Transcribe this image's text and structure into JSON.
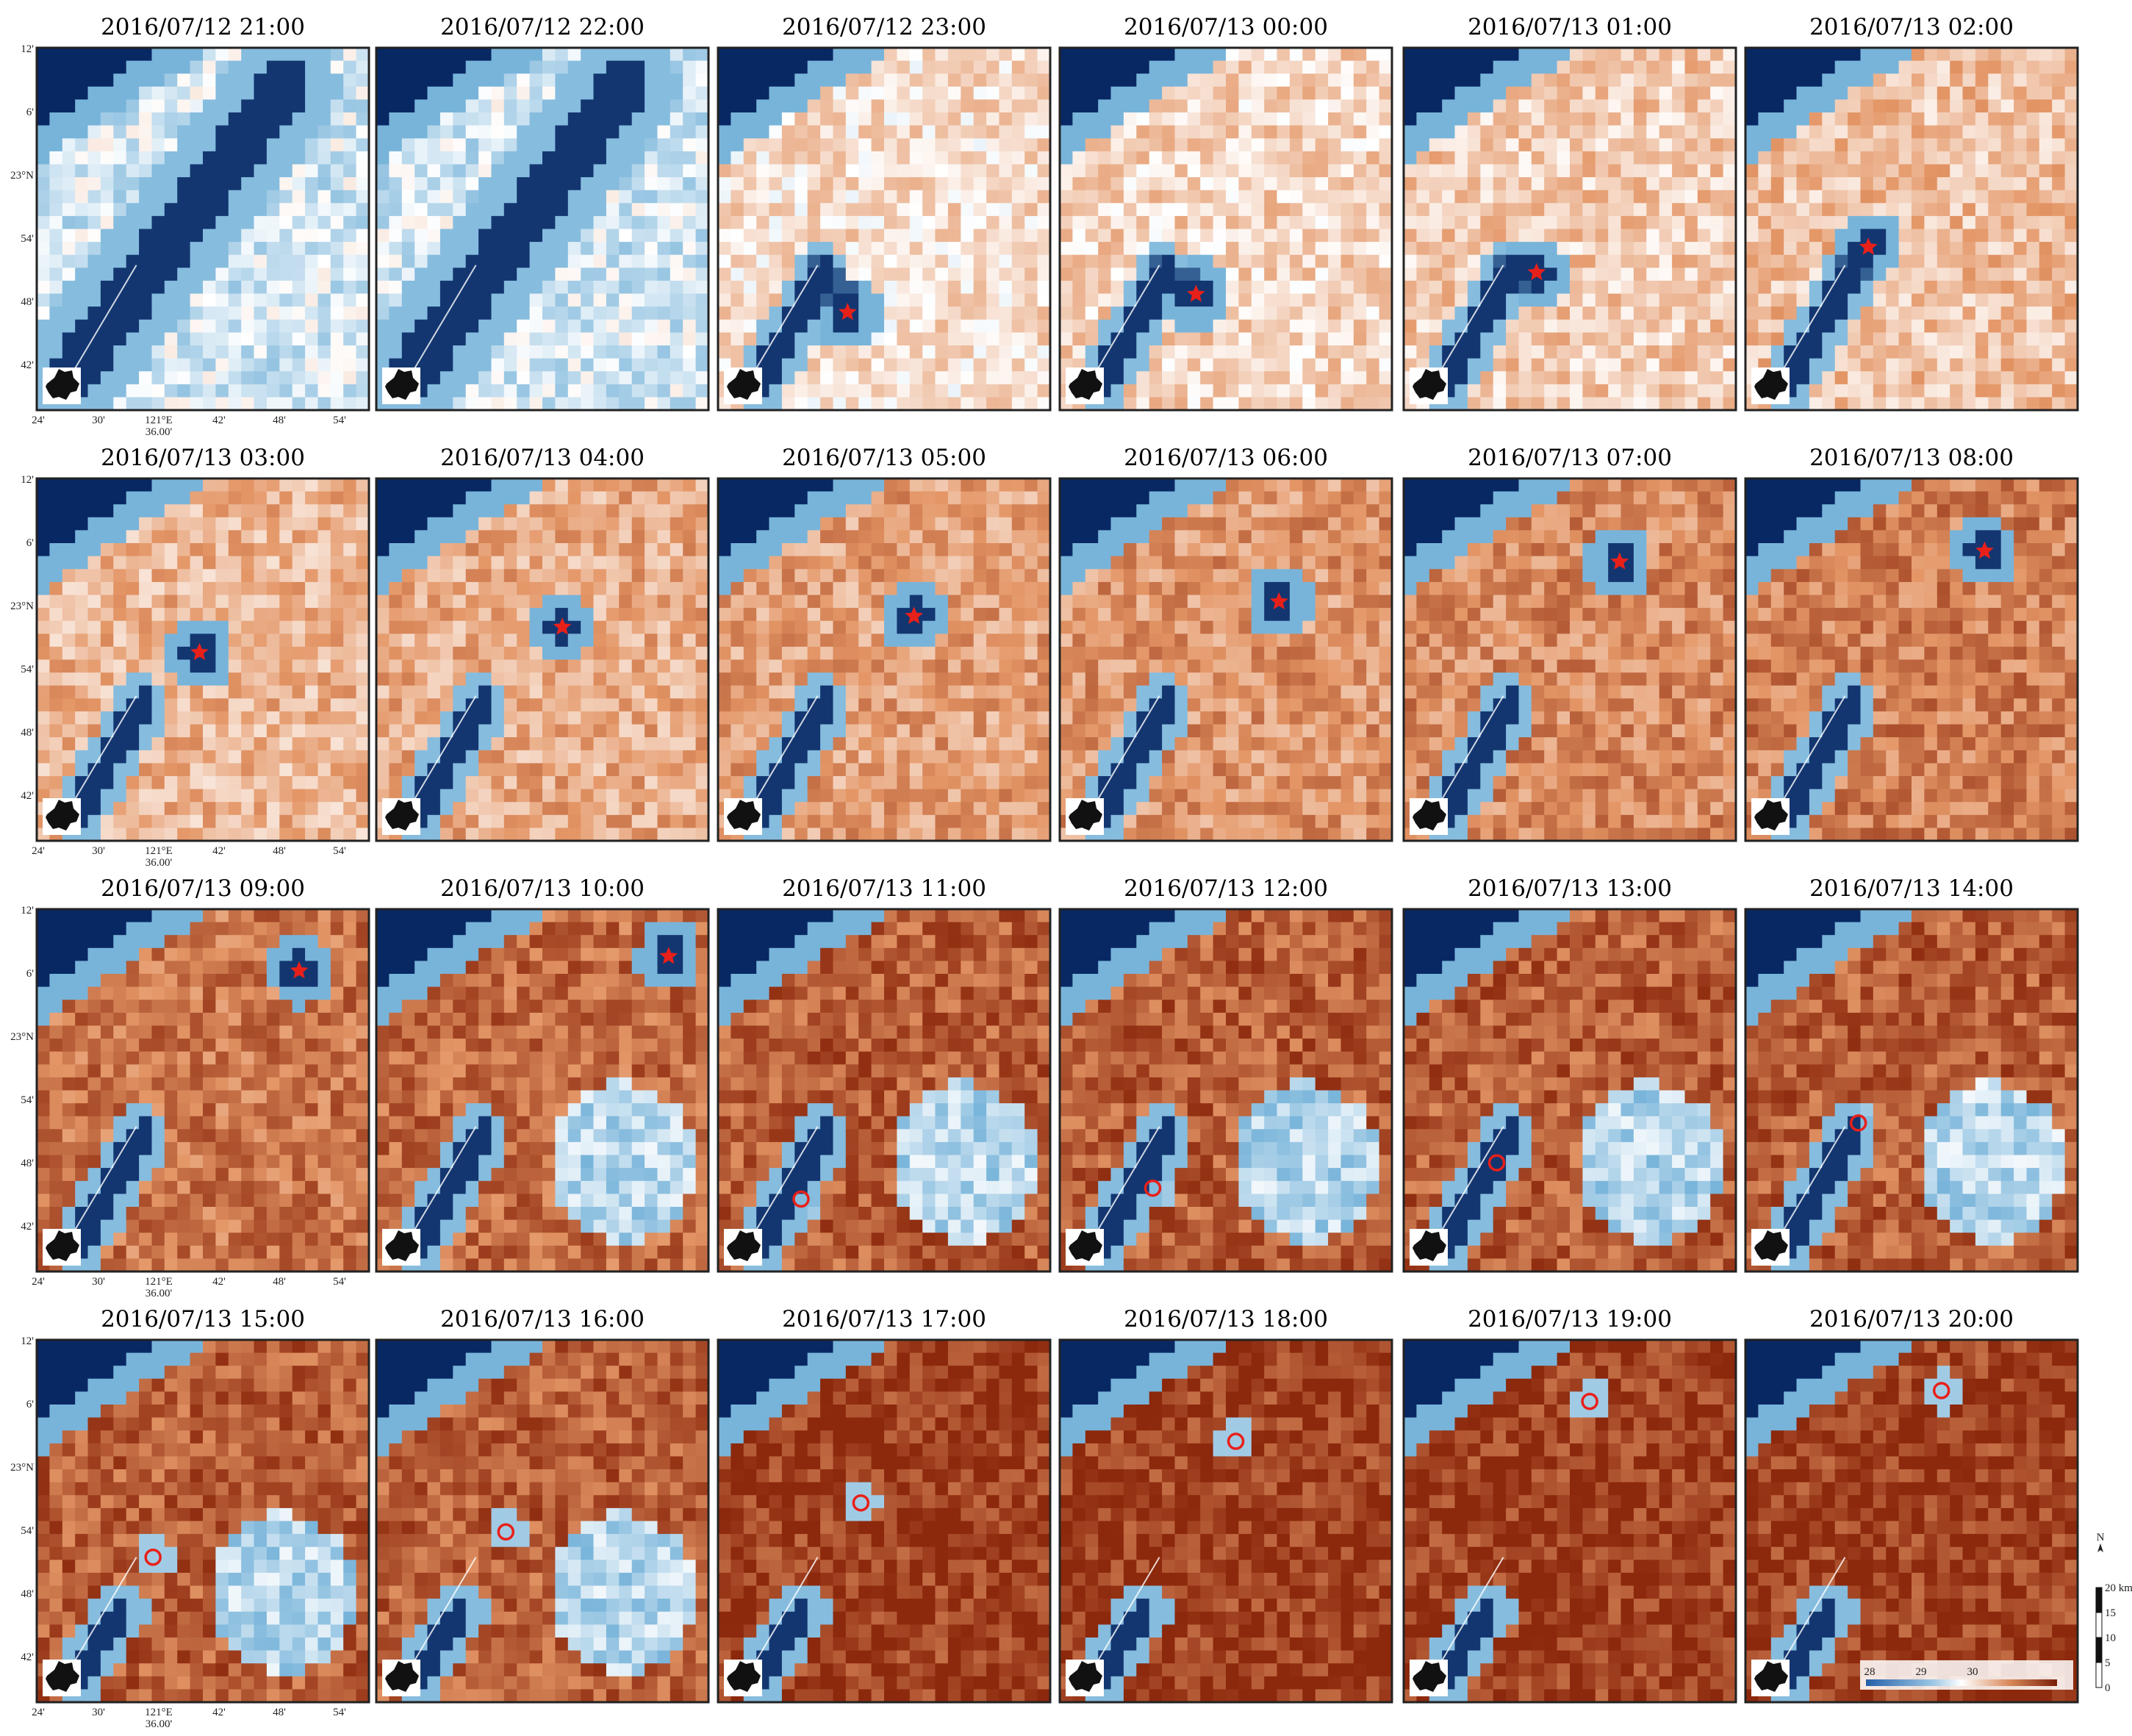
{
  "panels": [
    {
      "title": "2016/07/12 21:00"
    },
    {
      "title": "2016/07/12 22:00"
    },
    {
      "title": "2016/07/12 23:00"
    },
    {
      "title": "2016/07/13 00:00"
    },
    {
      "title": "2016/07/13 01:00"
    },
    {
      "title": "2016/07/13 02:00"
    },
    {
      "title": "2016/07/13 03:00"
    },
    {
      "title": "2016/07/13 04:00"
    },
    {
      "title": "2016/07/13 05:00"
    },
    {
      "title": "2016/07/13 06:00"
    },
    {
      "title": "2016/07/13 07:00"
    },
    {
      "title": "2016/07/13 08:00"
    },
    {
      "title": "2016/07/13 09:00"
    },
    {
      "title": "2016/07/13 10:00"
    },
    {
      "title": "2016/07/13 11:00"
    },
    {
      "title": "2016/07/13 12:00"
    },
    {
      "title": "2016/07/13 13:00"
    },
    {
      "title": "2016/07/13 14:00"
    },
    {
      "title": "2016/07/13 15:00"
    },
    {
      "title": "2016/07/13 16:00"
    },
    {
      "title": "2016/07/13 17:00"
    },
    {
      "title": "2016/07/13 18:00"
    },
    {
      "title": "2016/07/13 19:00"
    },
    {
      "title": "2016/07/13 20:00"
    }
  ],
  "lat_labels": [
    "12'",
    "6'",
    "23°N",
    "54'",
    "48'",
    "42'"
  ],
  "lon_labels": [
    "24'",
    "30'",
    "121°E",
    "42'",
    "48'",
    "54'"
  ],
  "lon_center_sub": "36.00'",
  "north": "N",
  "scale_bar": [
    "20 km",
    "15",
    "10",
    "5",
    "0"
  ],
  "color_scale": [
    "28",
    "29",
    "30"
  ]
}
